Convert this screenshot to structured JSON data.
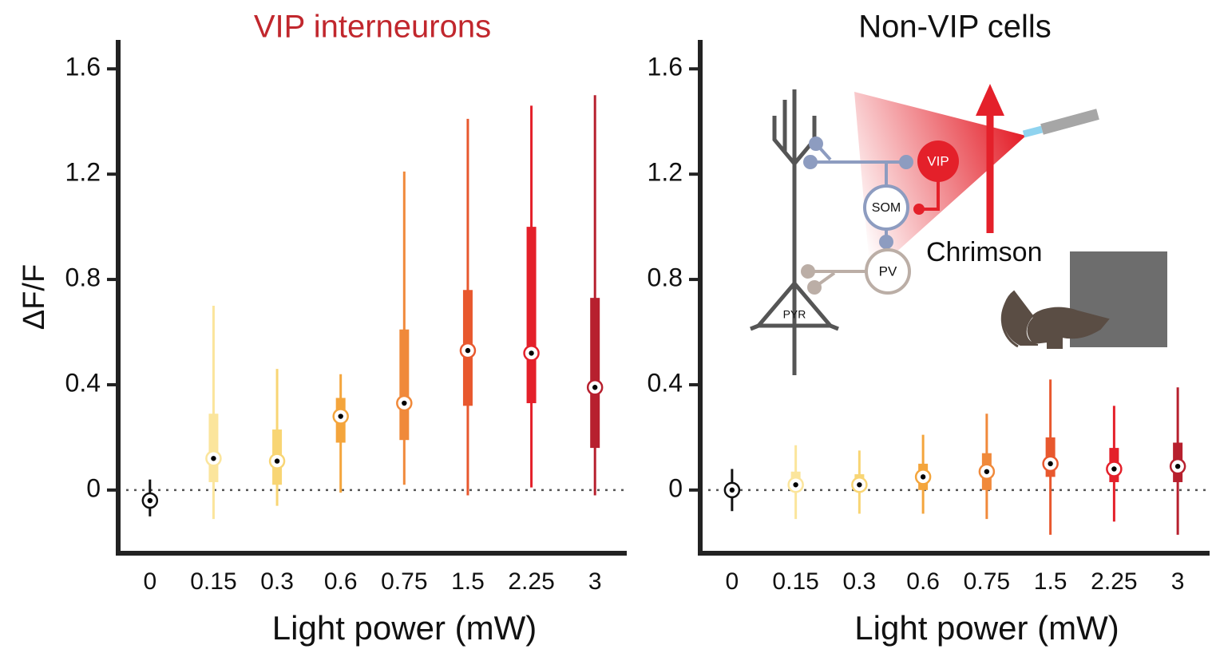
{
  "chart_data": [
    {
      "type": "box",
      "title": "VIP interneurons",
      "title_color": "#c1272d",
      "ylabel": "ΔF/F",
      "xlabel": "Light power (mW)",
      "categories": [
        "0",
        "0.15",
        "0.3",
        "0.6",
        "0.75",
        "1.5",
        "2.25",
        "3"
      ],
      "median": [
        -0.04,
        0.12,
        0.11,
        0.28,
        0.33,
        0.53,
        0.52,
        0.39
      ],
      "q1": [
        -0.06,
        0.03,
        0.02,
        0.18,
        0.19,
        0.32,
        0.33,
        0.16
      ],
      "q3": [
        -0.02,
        0.29,
        0.23,
        0.35,
        0.61,
        0.76,
        1.0,
        0.73
      ],
      "low": [
        -0.1,
        -0.11,
        -0.06,
        -0.01,
        0.02,
        -0.02,
        0.01,
        -0.02
      ],
      "high": [
        0.04,
        0.7,
        0.46,
        0.44,
        1.21,
        1.41,
        1.46,
        1.5
      ],
      "colors": [
        "#111111",
        "#fbe59c",
        "#f8d574",
        "#f4a53c",
        "#f0893a",
        "#e8582e",
        "#e4202a",
        "#b7202e"
      ],
      "ylim": [
        -0.24,
        1.71
      ],
      "yticks": [
        0,
        0.4,
        0.8,
        1.2,
        1.6
      ],
      "hline": 0
    },
    {
      "type": "box",
      "title": "Non-VIP cells",
      "title_color": "#111111",
      "xlabel": "Light power (mW)",
      "categories": [
        "0",
        "0.15",
        "0.3",
        "0.6",
        "0.75",
        "1.5",
        "2.25",
        "3"
      ],
      "median": [
        0.0,
        0.02,
        0.02,
        0.05,
        0.07,
        0.1,
        0.08,
        0.09
      ],
      "q1": [
        -0.01,
        0.0,
        0.0,
        0.0,
        0.0,
        0.05,
        0.03,
        0.03
      ],
      "q3": [
        0.01,
        0.07,
        0.06,
        0.1,
        0.14,
        0.2,
        0.16,
        0.18
      ],
      "low": [
        -0.08,
        -0.11,
        -0.09,
        -0.09,
        -0.11,
        -0.17,
        -0.12,
        -0.17
      ],
      "high": [
        0.08,
        0.17,
        0.15,
        0.21,
        0.29,
        0.42,
        0.32,
        0.39
      ],
      "colors": [
        "#111111",
        "#fbe59c",
        "#f8d574",
        "#f4a53c",
        "#f0893a",
        "#e8582e",
        "#e4202a",
        "#b7202e"
      ],
      "ylim": [
        -0.24,
        1.71
      ],
      "yticks": [
        0,
        0.4,
        0.8,
        1.2,
        1.6
      ],
      "hline": 0,
      "inset": {
        "vip": "VIP",
        "som": "SOM",
        "pv": "PV",
        "pyr": "PYR",
        "opsin": "Chrimson"
      }
    }
  ]
}
